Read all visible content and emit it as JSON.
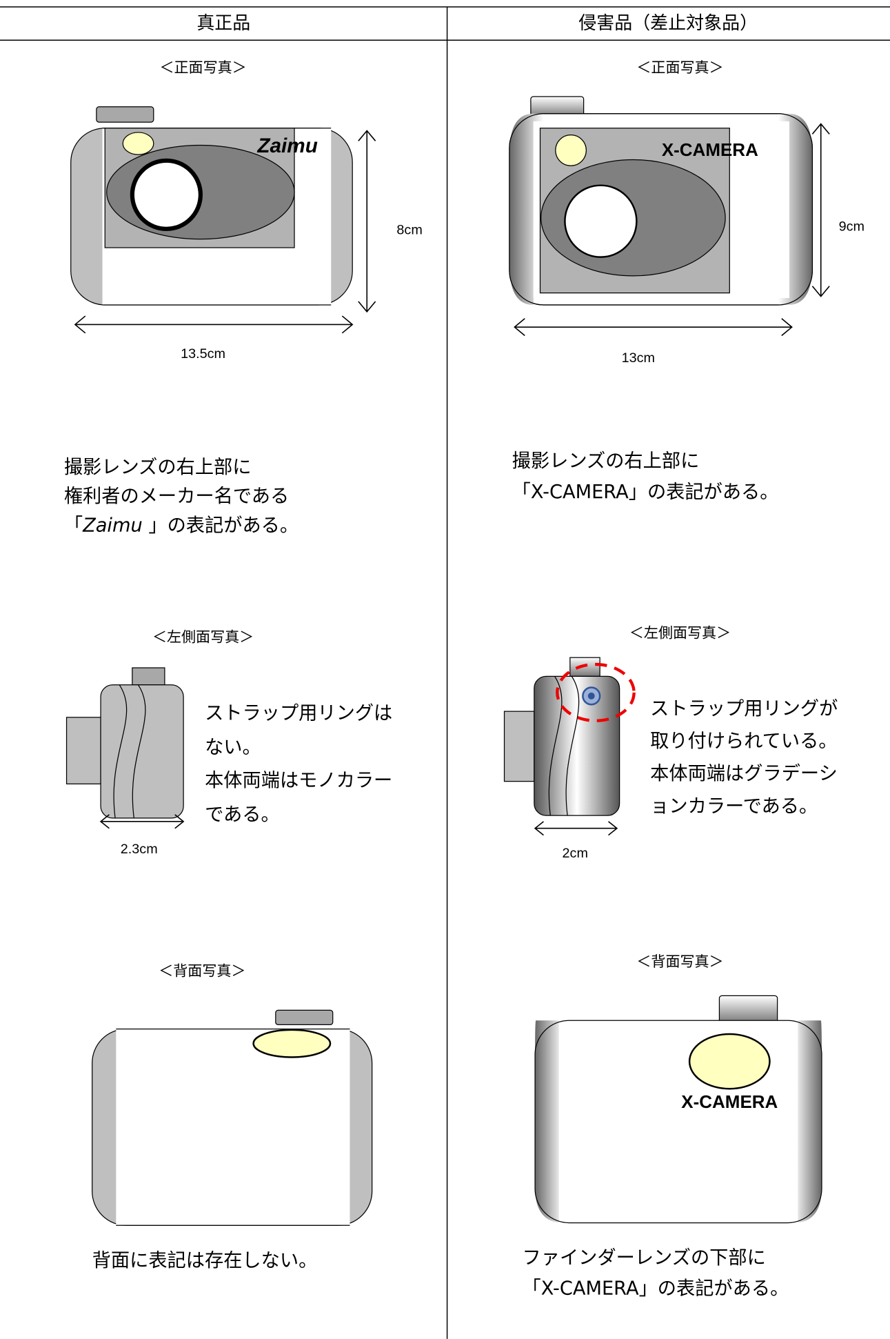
{
  "header": {
    "left": "真正品",
    "right": "侵害品（差止対象品）"
  },
  "genuine": {
    "front": {
      "label": "＜正面写真＞",
      "brand": "Zaimu",
      "height": "8cm",
      "width": "13.5cm",
      "description": [
        "撮影レンズの右上部に",
        "権利者のメーカー名である"
      ],
      "description_last": {
        "before": "「",
        "brand": "Zaimu",
        "after": " 」の表記がある。"
      }
    },
    "side": {
      "label": "＜左側面写真＞",
      "width": "2.3cm",
      "description": [
        "ストラップ用リングは",
        "ない。",
        "本体両端はモノカラー",
        "である。"
      ]
    },
    "back": {
      "label": "＜背面写真＞",
      "description": "背面に表記は存在しない。"
    }
  },
  "infringing": {
    "front": {
      "label": "＜正面写真＞",
      "brand": "X-CAMERA",
      "height": "9cm",
      "width": "13cm",
      "description": [
        "撮影レンズの右上部に",
        "「X-CAMERA」の表記がある。"
      ]
    },
    "side": {
      "label": "＜左側面写真＞",
      "width": "2cm",
      "description": [
        "ストラップ用リングが",
        "取り付けられている。",
        "本体両端はグラデーシ",
        "ョンカラーである。"
      ]
    },
    "back": {
      "label": "＜背面写真＞",
      "brand": "X-CAMERA",
      "description": [
        "ファインダーレンズの下部に",
        "「X-CAMERA」の表記がある。"
      ]
    }
  }
}
